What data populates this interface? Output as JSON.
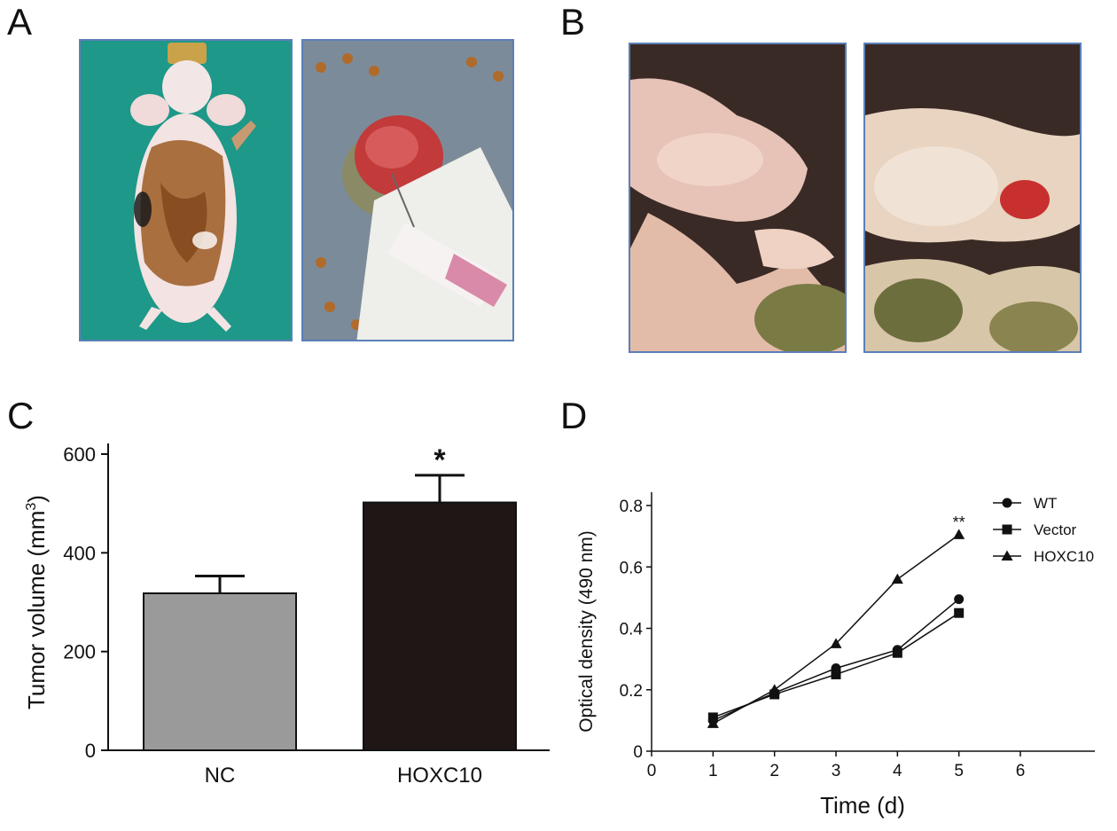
{
  "panels": {
    "a": "A",
    "b": "B",
    "c": "C",
    "d": "D"
  },
  "chart_data": [
    {
      "type": "bar",
      "categories": [
        "NC",
        "HOXC10"
      ],
      "values": [
        318,
        502
      ],
      "errors": [
        35,
        55
      ],
      "colors": [
        "#9a9a9a",
        "#1e1716"
      ],
      "significance": [
        "",
        "*"
      ],
      "ylabel": "Tumor volume (mm",
      "ylabel_sup": "3",
      "ylabel_end": ")",
      "ylim": [
        0,
        600
      ],
      "yticks": [
        0,
        200,
        400,
        600
      ],
      "ytick_labels": [
        "0",
        "200",
        "400",
        "600"
      ]
    },
    {
      "type": "line",
      "x": [
        1,
        2,
        3,
        4,
        5
      ],
      "series": [
        {
          "name": "WT",
          "marker": "circle",
          "values": [
            0.1,
            0.19,
            0.27,
            0.33,
            0.495
          ]
        },
        {
          "name": "Vector",
          "marker": "square",
          "values": [
            0.11,
            0.185,
            0.25,
            0.32,
            0.45
          ]
        },
        {
          "name": "HOXC10",
          "marker": "triangle",
          "values": [
            0.09,
            0.2,
            0.35,
            0.56,
            0.705
          ]
        }
      ],
      "annotation": "**",
      "xlabel": "Time (d)",
      "ylabel": "Optical density (490 nm)",
      "xlim": [
        0,
        6
      ],
      "ylim": [
        0,
        0.8
      ],
      "xticks": [
        0,
        1,
        2,
        3,
        4,
        5,
        6
      ],
      "xtick_labels": [
        "0",
        "1",
        "2",
        "3",
        "4",
        "5",
        "6"
      ],
      "yticks": [
        0,
        0.2,
        0.4,
        0.6,
        0.8
      ],
      "ytick_labels": [
        "0",
        "0.2",
        "0.4",
        "0.6",
        "0.8"
      ],
      "legend": "top-right"
    }
  ]
}
